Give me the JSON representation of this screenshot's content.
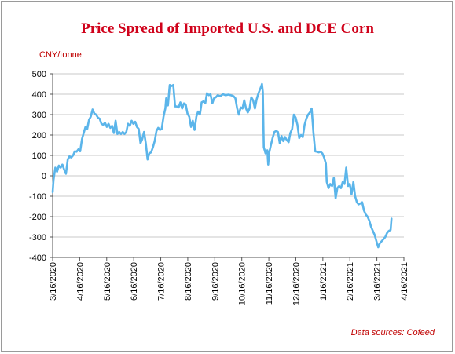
{
  "chart_data": {
    "type": "line",
    "title": "Price Spread of Imported U.S. and DCE Corn",
    "ylabel": "CNY/tonne",
    "xlabel": "",
    "source": "Data sources: Cofeed",
    "ylim": [
      -400,
      500
    ],
    "yticks": [
      500,
      400,
      300,
      200,
      100,
      0,
      -100,
      -200,
      -300,
      -400
    ],
    "grid": "horizontal",
    "line_color": "#5bb5ea",
    "title_color": "#d0021b",
    "x_tick_labels": [
      "3/16/2020",
      "4/16/2020",
      "5/16/2020",
      "6/16/2020",
      "7/16/2020",
      "8/16/2020",
      "9/16/2020",
      "10/16/2020",
      "11/16/2020",
      "12/16/2020",
      "1/16/2021",
      "2/16/2021",
      "3/16/2021",
      "4/16/2021"
    ],
    "x_start": "2020-03-16",
    "x_end": "2021-04-16",
    "series": [
      {
        "name": "",
        "points": [
          [
            "2020-03-16",
            -80
          ],
          [
            "2020-03-17",
            -20
          ],
          [
            "2020-03-19",
            40
          ],
          [
            "2020-03-21",
            20
          ],
          [
            "2020-03-23",
            50
          ],
          [
            "2020-03-25",
            40
          ],
          [
            "2020-03-27",
            55
          ],
          [
            "2020-03-29",
            30
          ],
          [
            "2020-03-31",
            10
          ],
          [
            "2020-04-02",
            80
          ],
          [
            "2020-04-04",
            95
          ],
          [
            "2020-04-06",
            90
          ],
          [
            "2020-04-08",
            100
          ],
          [
            "2020-04-10",
            120
          ],
          [
            "2020-04-12",
            118
          ],
          [
            "2020-04-14",
            130
          ],
          [
            "2020-04-16",
            120
          ],
          [
            "2020-04-18",
            180
          ],
          [
            "2020-04-20",
            210
          ],
          [
            "2020-04-22",
            240
          ],
          [
            "2020-04-24",
            230
          ],
          [
            "2020-04-26",
            275
          ],
          [
            "2020-04-28",
            290
          ],
          [
            "2020-04-30",
            325
          ],
          [
            "2020-05-02",
            305
          ],
          [
            "2020-05-04",
            300
          ],
          [
            "2020-05-06",
            285
          ],
          [
            "2020-05-08",
            280
          ],
          [
            "2020-05-10",
            255
          ],
          [
            "2020-05-12",
            250
          ],
          [
            "2020-05-14",
            260
          ],
          [
            "2020-05-16",
            240
          ],
          [
            "2020-05-18",
            255
          ],
          [
            "2020-05-20",
            235
          ],
          [
            "2020-05-22",
            245
          ],
          [
            "2020-05-24",
            210
          ],
          [
            "2020-05-26",
            270
          ],
          [
            "2020-05-28",
            205
          ],
          [
            "2020-05-30",
            215
          ],
          [
            "2020-06-01",
            205
          ],
          [
            "2020-06-03",
            215
          ],
          [
            "2020-06-05",
            205
          ],
          [
            "2020-06-07",
            215
          ],
          [
            "2020-06-09",
            255
          ],
          [
            "2020-06-11",
            245
          ],
          [
            "2020-06-13",
            270
          ],
          [
            "2020-06-15",
            255
          ],
          [
            "2020-06-17",
            265
          ],
          [
            "2020-06-19",
            240
          ],
          [
            "2020-06-21",
            230
          ],
          [
            "2020-06-23",
            160
          ],
          [
            "2020-06-25",
            180
          ],
          [
            "2020-06-27",
            215
          ],
          [
            "2020-06-29",
            160
          ],
          [
            "2020-07-01",
            80
          ],
          [
            "2020-07-03",
            110
          ],
          [
            "2020-07-05",
            115
          ],
          [
            "2020-07-07",
            140
          ],
          [
            "2020-07-09",
            170
          ],
          [
            "2020-07-11",
            220
          ],
          [
            "2020-07-13",
            235
          ],
          [
            "2020-07-15",
            225
          ],
          [
            "2020-07-17",
            230
          ],
          [
            "2020-07-19",
            290
          ],
          [
            "2020-07-21",
            330
          ],
          [
            "2020-07-22",
            380
          ],
          [
            "2020-07-24",
            345
          ],
          [
            "2020-07-26",
            445
          ],
          [
            "2020-07-28",
            440
          ],
          [
            "2020-07-30",
            445
          ],
          [
            "2020-08-01",
            340
          ],
          [
            "2020-08-03",
            340
          ],
          [
            "2020-08-05",
            335
          ],
          [
            "2020-08-07",
            360
          ],
          [
            "2020-08-09",
            330
          ],
          [
            "2020-08-11",
            355
          ],
          [
            "2020-08-13",
            350
          ],
          [
            "2020-08-15",
            305
          ],
          [
            "2020-08-17",
            290
          ],
          [
            "2020-08-19",
            240
          ],
          [
            "2020-08-21",
            270
          ],
          [
            "2020-08-23",
            225
          ],
          [
            "2020-08-25",
            290
          ],
          [
            "2020-08-27",
            315
          ],
          [
            "2020-08-29",
            300
          ],
          [
            "2020-08-31",
            360
          ],
          [
            "2020-09-02",
            365
          ],
          [
            "2020-09-04",
            355
          ],
          [
            "2020-09-06",
            405
          ],
          [
            "2020-09-08",
            395
          ],
          [
            "2020-09-10",
            400
          ],
          [
            "2020-09-12",
            355
          ],
          [
            "2020-09-14",
            380
          ],
          [
            "2020-09-16",
            385
          ],
          [
            "2020-09-18",
            395
          ],
          [
            "2020-09-21",
            390
          ],
          [
            "2020-09-24",
            400
          ],
          [
            "2020-09-27",
            395
          ],
          [
            "2020-09-30",
            398
          ],
          [
            "2020-10-03",
            395
          ],
          [
            "2020-10-06",
            390
          ],
          [
            "2020-10-08",
            380
          ],
          [
            "2020-10-10",
            330
          ],
          [
            "2020-10-12",
            300
          ],
          [
            "2020-10-14",
            335
          ],
          [
            "2020-10-16",
            330
          ],
          [
            "2020-10-18",
            370
          ],
          [
            "2020-10-20",
            330
          ],
          [
            "2020-10-22",
            310
          ],
          [
            "2020-10-24",
            330
          ],
          [
            "2020-10-26",
            385
          ],
          [
            "2020-10-28",
            370
          ],
          [
            "2020-10-30",
            330
          ],
          [
            "2020-11-01",
            375
          ],
          [
            "2020-11-03",
            405
          ],
          [
            "2020-11-05",
            425
          ],
          [
            "2020-11-07",
            450
          ],
          [
            "2020-11-08",
            410
          ],
          [
            "2020-11-09",
            140
          ],
          [
            "2020-11-11",
            110
          ],
          [
            "2020-11-13",
            125
          ],
          [
            "2020-11-14",
            55
          ],
          [
            "2020-11-15",
            110
          ],
          [
            "2020-11-17",
            150
          ],
          [
            "2020-11-19",
            185
          ],
          [
            "2020-11-21",
            215
          ],
          [
            "2020-11-23",
            220
          ],
          [
            "2020-11-25",
            215
          ],
          [
            "2020-11-27",
            160
          ],
          [
            "2020-11-29",
            195
          ],
          [
            "2020-12-01",
            170
          ],
          [
            "2020-12-03",
            190
          ],
          [
            "2020-12-05",
            175
          ],
          [
            "2020-12-07",
            165
          ],
          [
            "2020-12-09",
            210
          ],
          [
            "2020-12-11",
            230
          ],
          [
            "2020-12-13",
            300
          ],
          [
            "2020-12-15",
            285
          ],
          [
            "2020-12-17",
            250
          ],
          [
            "2020-12-19",
            185
          ],
          [
            "2020-12-21",
            200
          ],
          [
            "2020-12-23",
            190
          ],
          [
            "2020-12-25",
            250
          ],
          [
            "2020-12-27",
            280
          ],
          [
            "2020-12-29",
            300
          ],
          [
            "2020-12-31",
            310
          ],
          [
            "2021-01-02",
            330
          ],
          [
            "2021-01-04",
            210
          ],
          [
            "2021-01-06",
            120
          ],
          [
            "2021-01-08",
            118
          ],
          [
            "2021-01-10",
            115
          ],
          [
            "2021-01-12",
            118
          ],
          [
            "2021-01-14",
            110
          ],
          [
            "2021-01-16",
            90
          ],
          [
            "2021-01-18",
            60
          ],
          [
            "2021-01-19",
            -30
          ],
          [
            "2021-01-21",
            -60
          ],
          [
            "2021-01-23",
            -40
          ],
          [
            "2021-01-25",
            -50
          ],
          [
            "2021-01-27",
            -10
          ],
          [
            "2021-01-29",
            -110
          ],
          [
            "2021-01-31",
            -60
          ],
          [
            "2021-02-02",
            -50
          ],
          [
            "2021-02-04",
            -60
          ],
          [
            "2021-02-06",
            -30
          ],
          [
            "2021-02-08",
            -40
          ],
          [
            "2021-02-10",
            40
          ],
          [
            "2021-02-12",
            -50
          ],
          [
            "2021-02-14",
            -40
          ],
          [
            "2021-02-16",
            -90
          ],
          [
            "2021-02-18",
            -30
          ],
          [
            "2021-02-20",
            -100
          ],
          [
            "2021-02-22",
            -130
          ],
          [
            "2021-02-24",
            -140
          ],
          [
            "2021-02-26",
            -135
          ],
          [
            "2021-02-28",
            -130
          ],
          [
            "2021-03-02",
            -170
          ],
          [
            "2021-03-04",
            -190
          ],
          [
            "2021-03-06",
            -200
          ],
          [
            "2021-03-08",
            -220
          ],
          [
            "2021-03-10",
            -250
          ],
          [
            "2021-03-12",
            -270
          ],
          [
            "2021-03-14",
            -290
          ],
          [
            "2021-03-16",
            -320
          ],
          [
            "2021-03-18",
            -350
          ],
          [
            "2021-03-20",
            -330
          ],
          [
            "2021-03-22",
            -320
          ],
          [
            "2021-03-24",
            -310
          ],
          [
            "2021-03-26",
            -300
          ],
          [
            "2021-03-28",
            -280
          ],
          [
            "2021-03-30",
            -270
          ],
          [
            "2021-04-01",
            -265
          ],
          [
            "2021-04-02",
            -210
          ]
        ]
      }
    ]
  }
}
